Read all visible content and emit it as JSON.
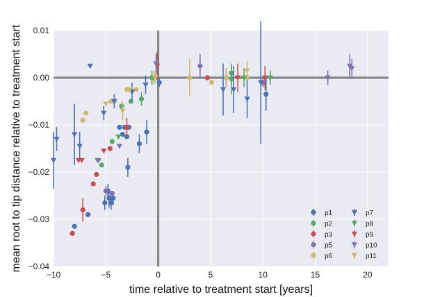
{
  "chart_data": {
    "type": "scatter",
    "title": "",
    "xlabel": "time relative to treatment start [years]",
    "ylabel": "mean root to tip distance relative to treatment start",
    "xlim": [
      -10,
      22
    ],
    "ylim": [
      -0.04,
      0.01
    ],
    "xticks": [
      -10,
      -5,
      0,
      5,
      10,
      15,
      20
    ],
    "xtick_labels": [
      "−10",
      "−5",
      "0",
      "5",
      "10",
      "15",
      "20"
    ],
    "yticks": [
      -0.04,
      -0.03,
      -0.02,
      -0.01,
      0.0,
      0.01
    ],
    "ytick_labels": [
      "−0.04",
      "−0.03",
      "−0.02",
      "−0.01",
      "0.00",
      "0.01"
    ],
    "grid": true,
    "reference_lines": {
      "x": 0,
      "y": 0
    },
    "legend_position": "lower-right",
    "legend_columns": 2,
    "series": [
      {
        "name": "p1",
        "marker": "circle",
        "color": "#4C72B0",
        "points": [
          {
            "x": -8.0,
            "y": -0.0315,
            "err": 0.0
          },
          {
            "x": -6.7,
            "y": -0.029,
            "err": 0.0
          },
          {
            "x": -5.1,
            "y": -0.0265,
            "err": 0.0015
          },
          {
            "x": -4.7,
            "y": -0.0255,
            "err": 0.002
          },
          {
            "x": -4.5,
            "y": -0.0265,
            "err": 0.0015
          },
          {
            "x": -4.3,
            "y": -0.0255,
            "err": 0.0015
          },
          {
            "x": -4.8,
            "y": -0.024,
            "err": 0.0015
          },
          {
            "x": -3.7,
            "y": -0.0105,
            "err": 0.0
          },
          {
            "x": -3.4,
            "y": -0.012,
            "err": 0.0
          },
          {
            "x": -3.2,
            "y": -0.0105,
            "err": 0.0
          },
          {
            "x": -3.0,
            "y": -0.0125,
            "err": 0.0
          },
          {
            "x": -2.8,
            "y": -0.0105,
            "err": 0.0
          },
          {
            "x": -2.9,
            "y": -0.019,
            "err": 0.002
          },
          {
            "x": -1.8,
            "y": -0.014,
            "err": 0.002
          },
          {
            "x": -1.1,
            "y": -0.0115,
            "err": 0.0025
          },
          {
            "x": 0.1,
            "y": -0.001,
            "err": 0.001
          },
          {
            "x": 10.3,
            "y": -0.0035,
            "err": 0.0035
          },
          {
            "x": 10.0,
            "y": -0.001,
            "err": 0.0
          }
        ]
      },
      {
        "name": "p2",
        "marker": "circle",
        "color": "#55A868",
        "points": [
          {
            "x": -5.4,
            "y": -0.0185,
            "err": 0.0
          },
          {
            "x": -4.4,
            "y": -0.0135,
            "err": 0.0
          },
          {
            "x": -3.5,
            "y": -0.006,
            "err": 0.0
          },
          {
            "x": -2.6,
            "y": -0.005,
            "err": 0.0
          },
          {
            "x": -1.6,
            "y": -0.0045,
            "err": 0.0015
          },
          {
            "x": -0.6,
            "y": 0.0,
            "err": 0.0015
          },
          {
            "x": 7.0,
            "y": 0.001,
            "err": 0.002
          }
        ]
      },
      {
        "name": "p3",
        "marker": "circle",
        "color": "#C44E52",
        "points": [
          {
            "x": -8.2,
            "y": -0.033,
            "err": 0.0
          },
          {
            "x": -7.2,
            "y": -0.028,
            "err": 0.0025
          },
          {
            "x": -6.2,
            "y": -0.0225,
            "err": 0.0
          },
          {
            "x": -5.9,
            "y": -0.0205,
            "err": 0.0
          },
          {
            "x": -4.6,
            "y": -0.015,
            "err": 0.0
          },
          {
            "x": -3.0,
            "y": -0.0105,
            "err": 0.002
          },
          {
            "x": 4.7,
            "y": 0.0,
            "err": 0.0
          },
          {
            "x": 6.5,
            "y": 0.0,
            "err": 0.002
          }
        ]
      },
      {
        "name": "p5",
        "marker": "circle",
        "color": "#8172B2",
        "points": [
          {
            "x": -5.0,
            "y": -0.024,
            "err": 0.001
          },
          {
            "x": -4.4,
            "y": -0.0245,
            "err": 0.0
          },
          {
            "x": 4.0,
            "y": 0.0025,
            "err": 0.0025
          },
          {
            "x": 6.5,
            "y": 0.0,
            "err": 0.0
          },
          {
            "x": 10.0,
            "y": -0.001,
            "err": 0.001
          }
        ]
      },
      {
        "name": "p6",
        "marker": "circle",
        "color": "#CCB974",
        "points": [
          {
            "x": -7.2,
            "y": -0.009,
            "err": 0.0005
          },
          {
            "x": -6.9,
            "y": -0.0075,
            "err": 0.0005
          },
          {
            "x": -4.5,
            "y": -0.005,
            "err": 0.0
          },
          {
            "x": -4.2,
            "y": -0.005,
            "err": 0.0
          },
          {
            "x": -3.0,
            "y": -0.0025,
            "err": 0.0
          },
          {
            "x": -2.1,
            "y": -0.0025,
            "err": 0.0
          },
          {
            "x": -0.4,
            "y": 0.0,
            "err": 0.0015
          },
          {
            "x": 3.0,
            "y": 0.0,
            "err": 0.004
          },
          {
            "x": 5.1,
            "y": -0.001,
            "err": 0.0005
          },
          {
            "x": 6.5,
            "y": 0.0,
            "err": 0.002
          },
          {
            "x": 8.5,
            "y": 0.0,
            "err": 0.0035
          }
        ]
      },
      {
        "name": "p7",
        "marker": "triangle-down",
        "color": "#4C72B0",
        "points": [
          {
            "x": -10.0,
            "y": -0.0175,
            "err": 0.006
          },
          {
            "x": -9.7,
            "y": -0.013,
            "err": 0.0025
          },
          {
            "x": -8.0,
            "y": -0.012,
            "err": 0.0065
          },
          {
            "x": -7.5,
            "y": -0.0145,
            "err": 0.003
          },
          {
            "x": -6.5,
            "y": 0.0025,
            "err": 0.0
          },
          {
            "x": -5.2,
            "y": -0.0075,
            "err": 0.0015
          },
          {
            "x": -4.2,
            "y": -0.005,
            "err": 0.0015
          },
          {
            "x": -2.5,
            "y": -0.003,
            "err": 0.002
          },
          {
            "x": -1.2,
            "y": -0.0015,
            "err": 0.002
          },
          {
            "x": 6.2,
            "y": -0.0025,
            "err": 0.0055
          },
          {
            "x": 7.2,
            "y": -0.0025,
            "err": 0.005
          },
          {
            "x": 8.5,
            "y": -0.0045,
            "err": 0.004
          },
          {
            "x": 9.8,
            "y": -0.001,
            "err": 0.013
          }
        ]
      },
      {
        "name": "p8",
        "marker": "triangle-down",
        "color": "#55A868",
        "points": [
          {
            "x": -5.7,
            "y": -0.0175,
            "err": 0.0
          },
          {
            "x": -3.8,
            "y": -0.0125,
            "err": 0.0
          },
          {
            "x": -0.5,
            "y": 0.0,
            "err": 0.0
          },
          {
            "x": 7.0,
            "y": -0.0005,
            "err": 0.003
          },
          {
            "x": 8.2,
            "y": 0.0,
            "err": 0.002
          },
          {
            "x": 10.7,
            "y": 0.0,
            "err": 0.0015
          }
        ]
      },
      {
        "name": "p9",
        "marker": "triangle-down",
        "color": "#C44E52",
        "points": [
          {
            "x": -7.6,
            "y": -0.0175,
            "err": 0.0
          },
          {
            "x": -7.3,
            "y": -0.0175,
            "err": 0.0
          },
          {
            "x": -5.2,
            "y": -0.0155,
            "err": 0.0
          },
          {
            "x": -0.1,
            "y": 0.0025,
            "err": 0.003
          },
          {
            "x": 7.6,
            "y": 0.0,
            "err": 0.003
          },
          {
            "x": 10.2,
            "y": 0.0,
            "err": 0.0025
          }
        ]
      },
      {
        "name": "p10",
        "marker": "triangle-down",
        "color": "#8172B2",
        "points": [
          {
            "x": -5.8,
            "y": -0.0175,
            "err": 0.0
          },
          {
            "x": -3.7,
            "y": -0.0145,
            "err": 0.0
          },
          {
            "x": -0.2,
            "y": 0.003,
            "err": 0.002
          },
          {
            "x": 16.2,
            "y": 0.0,
            "err": 0.0015
          },
          {
            "x": 18.3,
            "y": 0.0025,
            "err": 0.0025
          },
          {
            "x": 18.5,
            "y": 0.002,
            "err": 0.002
          }
        ]
      },
      {
        "name": "p11",
        "marker": "triangle-down",
        "color": "#CCB974",
        "points": [
          {
            "x": -5.0,
            "y": -0.0055,
            "err": 0.0
          },
          {
            "x": -3.4,
            "y": -0.007,
            "err": 0.002
          },
          {
            "x": -2.7,
            "y": -0.0025,
            "err": 0.0
          },
          {
            "x": -0.3,
            "y": 0.0,
            "err": 0.001
          },
          {
            "x": 8.5,
            "y": 0.0015,
            "err": 0.002
          }
        ]
      }
    ]
  }
}
